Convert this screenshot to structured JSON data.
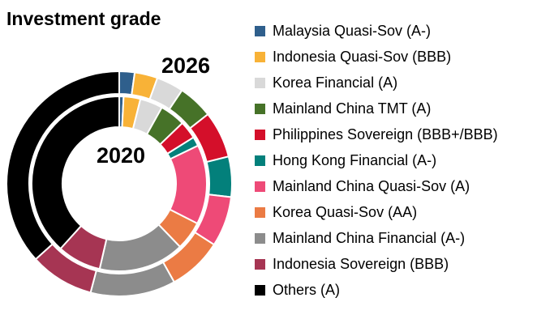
{
  "title": "Investment grade",
  "chart_data": {
    "type": "pie",
    "subtype": "double-ring-donut",
    "title": "Investment grade",
    "start_angle_deg": 0,
    "direction": "clockwise",
    "legend_position": "right",
    "categories": [
      "Malaysia Quasi-Sov (A-)",
      "Indonesia Quasi-Sov (BBB)",
      "Korea Financial (A)",
      "Mainland China TMT (A)",
      "Philippines Sovereign (BBB+/BBB)",
      "Hong Kong Financial (A-)",
      "Mainland China Quasi-Sov (A)",
      "Korea Quasi-Sov (AA)",
      "Mainland China Financial (A-)",
      "Indonesia Sovereign (BBB)",
      "Others (A)"
    ],
    "colors": [
      "#2F5F8C",
      "#F8B237",
      "#D9D9D9",
      "#467228",
      "#D40F2A",
      "#03807B",
      "#EE4A77",
      "#EB7B44",
      "#8C8C8C",
      "#A63553",
      "#000000"
    ],
    "series": [
      {
        "name": "2020",
        "ring": "inner",
        "values_pct": [
          0.8,
          3.1,
          4.2,
          4.7,
          3.3,
          1.7,
          14.7,
          5.3,
          15.8,
          8.1,
          38.3
        ]
      },
      {
        "name": "2026",
        "ring": "outer",
        "values_pct": [
          2.2,
          3.3,
          3.9,
          5.0,
          6.7,
          5.8,
          7.2,
          7.8,
          12.2,
          9.2,
          36.7
        ]
      }
    ]
  },
  "legend": {
    "items": [
      {
        "label": "Malaysia Quasi-Sov (A-)",
        "color": "#2F5F8C"
      },
      {
        "label": "Indonesia Quasi-Sov (BBB)",
        "color": "#F8B237"
      },
      {
        "label": "Korea Financial (A)",
        "color": "#D9D9D9"
      },
      {
        "label": "Mainland China TMT (A)",
        "color": "#467228"
      },
      {
        "label": "Philippines Sovereign (BBB+/BBB)",
        "color": "#D40F2A"
      },
      {
        "label": "Hong Kong Financial (A-)",
        "color": "#03807B"
      },
      {
        "label": "Mainland China Quasi-Sov (A)",
        "color": "#EE4A77"
      },
      {
        "label": "Korea Quasi-Sov (AA)",
        "color": "#EB7B44"
      },
      {
        "label": "Mainland China Financial (A-)",
        "color": "#8C8C8C"
      },
      {
        "label": "Indonesia Sovereign (BBB)",
        "color": "#A63553"
      },
      {
        "label": "Others (A)",
        "color": "#000000"
      }
    ]
  }
}
